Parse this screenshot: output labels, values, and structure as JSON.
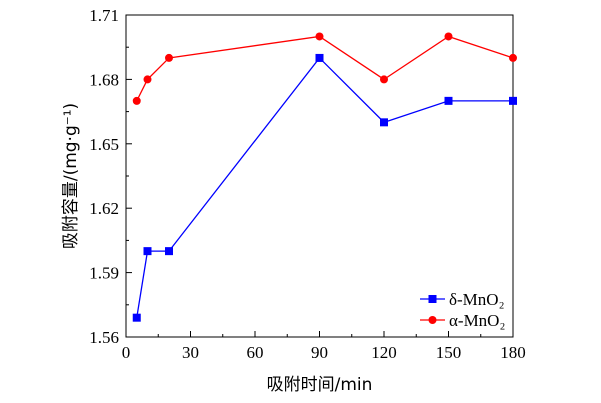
{
  "chart_data": {
    "type": "line",
    "xlabel": "吸附时间/min",
    "ylabel": "吸附容量/(mg·g⁻¹)",
    "xlim": [
      0,
      180
    ],
    "ylim": [
      1.56,
      1.71
    ],
    "xticks": [
      0,
      30,
      60,
      90,
      120,
      150,
      180
    ],
    "yticks": [
      1.56,
      1.59,
      1.62,
      1.65,
      1.68,
      1.71
    ],
    "xtick_labels": [
      "0",
      "30",
      "60",
      "90",
      "120",
      "150",
      "180"
    ],
    "ytick_labels": [
      "1.56",
      "1.59",
      "1.62",
      "1.65",
      "1.68",
      "1.71"
    ],
    "grid": false,
    "legend_position": "lower-right",
    "series": [
      {
        "name": "δ-MnO₂",
        "color": "#0000ff",
        "marker": "square",
        "x": [
          5,
          10,
          20,
          90,
          120,
          150,
          180
        ],
        "values": [
          1.569,
          1.6,
          1.6,
          1.69,
          1.66,
          1.67,
          1.67
        ]
      },
      {
        "name": "α-MnO₂",
        "color": "#ff0000",
        "marker": "circle",
        "x": [
          5,
          10,
          20,
          90,
          120,
          150,
          180
        ],
        "values": [
          1.67,
          1.68,
          1.69,
          1.7,
          1.68,
          1.7,
          1.69
        ]
      }
    ]
  }
}
